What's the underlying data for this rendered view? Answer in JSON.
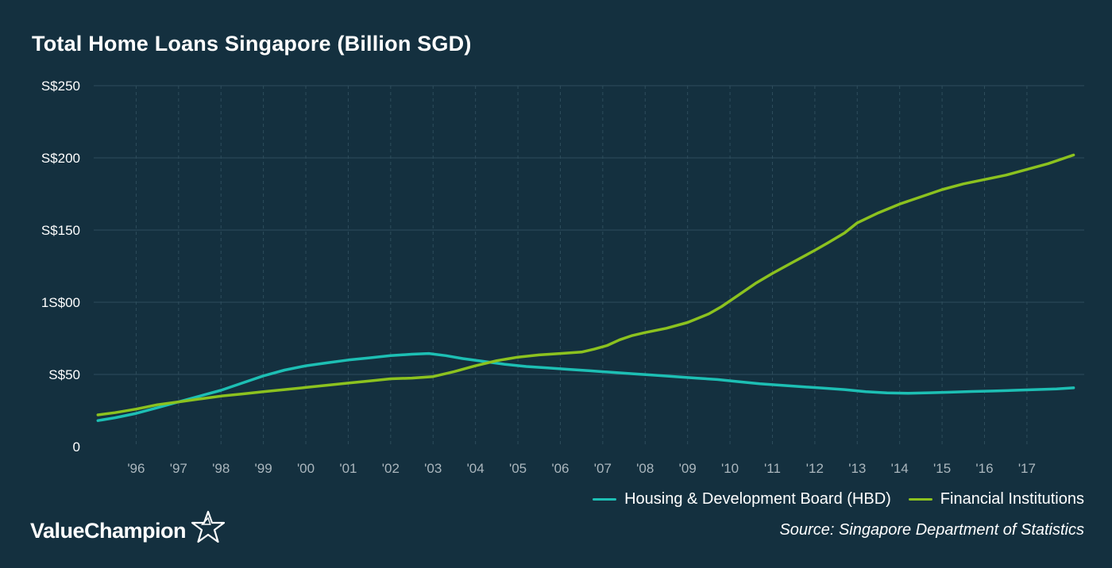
{
  "title": "Total Home Loans Singapore (Billion SGD)",
  "legend": [
    {
      "label": "Housing & Development Board (HBD)",
      "color": "#1dbfb4"
    },
    {
      "label": "Financial Institutions",
      "color": "#8cc21f"
    }
  ],
  "source": "Source: Singapore Department of Statistics",
  "brand": {
    "name": "ValueChampion",
    "icon": "star-outline-icon"
  },
  "colors": {
    "background": "#14303f",
    "grid": "#2e4d5c",
    "hdb": "#1dbfb4",
    "fi": "#8cc21f"
  },
  "chart_data": {
    "type": "line",
    "title": "Total Home Loans Singapore (Billion SGD)",
    "xlabel": "",
    "ylabel": "",
    "x_ticks": [
      "'96",
      "'97",
      "'98",
      "'99",
      "'00",
      "'01",
      "'02",
      "'03",
      "'04",
      "'05",
      "'06",
      "'07",
      "'08",
      "'09",
      "'10",
      "'11",
      "'12",
      "'13",
      "'14",
      "'15",
      "'16",
      "'17"
    ],
    "y_ticks": [
      {
        "value": 0,
        "label": "0"
      },
      {
        "value": 50,
        "label": "S$50"
      },
      {
        "value": 100,
        "label": "1S$00"
      },
      {
        "value": 150,
        "label": "S$150"
      },
      {
        "value": 200,
        "label": "S$200"
      },
      {
        "value": 250,
        "label": "S$250"
      }
    ],
    "xlim": [
      1995.0,
      2018.35
    ],
    "ylim": [
      0,
      250
    ],
    "grid": true,
    "legend_position": "bottom-right",
    "series": [
      {
        "name": "Housing & Development Board (HBD)",
        "color": "#1dbfb4",
        "points": [
          [
            1995.1,
            18
          ],
          [
            1995.5,
            20
          ],
          [
            1996.0,
            23
          ],
          [
            1996.5,
            27
          ],
          [
            1997.0,
            31
          ],
          [
            1997.5,
            35
          ],
          [
            1998.0,
            39
          ],
          [
            1998.5,
            44
          ],
          [
            1999.0,
            49
          ],
          [
            1999.5,
            53
          ],
          [
            2000.0,
            56
          ],
          [
            2000.5,
            58
          ],
          [
            2001.0,
            60
          ],
          [
            2001.5,
            61.5
          ],
          [
            2002.0,
            63
          ],
          [
            2002.5,
            64
          ],
          [
            2002.9,
            64.5
          ],
          [
            2003.3,
            63
          ],
          [
            2003.7,
            61
          ],
          [
            2004.2,
            59
          ],
          [
            2004.7,
            57
          ],
          [
            2005.2,
            55.5
          ],
          [
            2005.7,
            54.5
          ],
          [
            2006.2,
            53.5
          ],
          [
            2006.7,
            52.5
          ],
          [
            2007.2,
            51.5
          ],
          [
            2007.7,
            50.5
          ],
          [
            2008.2,
            49.5
          ],
          [
            2008.7,
            48.5
          ],
          [
            2009.2,
            47.5
          ],
          [
            2009.7,
            46.5
          ],
          [
            2010.2,
            45
          ],
          [
            2010.7,
            43.5
          ],
          [
            2011.2,
            42.5
          ],
          [
            2011.7,
            41.5
          ],
          [
            2012.2,
            40.5
          ],
          [
            2012.7,
            39.5
          ],
          [
            2013.2,
            38
          ],
          [
            2013.7,
            37.2
          ],
          [
            2014.2,
            37
          ],
          [
            2014.7,
            37.3
          ],
          [
            2015.2,
            37.7
          ],
          [
            2015.7,
            38.2
          ],
          [
            2016.2,
            38.5
          ],
          [
            2016.7,
            39
          ],
          [
            2017.2,
            39.5
          ],
          [
            2017.7,
            40
          ],
          [
            2018.1,
            40.7
          ]
        ]
      },
      {
        "name": "Financial Institutions",
        "color": "#8cc21f",
        "points": [
          [
            1995.1,
            22
          ],
          [
            1995.5,
            23.5
          ],
          [
            1996.0,
            26
          ],
          [
            1996.5,
            29
          ],
          [
            1997.0,
            31
          ],
          [
            1997.5,
            33
          ],
          [
            1998.0,
            35
          ],
          [
            1998.5,
            36.5
          ],
          [
            1999.0,
            38
          ],
          [
            1999.5,
            39.5
          ],
          [
            2000.0,
            41
          ],
          [
            2000.5,
            42.5
          ],
          [
            2001.0,
            44
          ],
          [
            2001.5,
            45.5
          ],
          [
            2002.0,
            47
          ],
          [
            2002.5,
            47.5
          ],
          [
            2003.0,
            48.5
          ],
          [
            2003.5,
            52
          ],
          [
            2004.0,
            56
          ],
          [
            2004.5,
            59.5
          ],
          [
            2005.0,
            62
          ],
          [
            2005.5,
            63.5
          ],
          [
            2006.0,
            64.5
          ],
          [
            2006.5,
            65.5
          ],
          [
            2006.8,
            67.5
          ],
          [
            2007.1,
            70
          ],
          [
            2007.4,
            74
          ],
          [
            2007.7,
            77
          ],
          [
            2008.0,
            79
          ],
          [
            2008.5,
            82
          ],
          [
            2009.0,
            86
          ],
          [
            2009.5,
            92
          ],
          [
            2009.8,
            97
          ],
          [
            2010.2,
            105
          ],
          [
            2010.6,
            113
          ],
          [
            2011.0,
            120
          ],
          [
            2011.5,
            128
          ],
          [
            2012.0,
            136
          ],
          [
            2012.3,
            141
          ],
          [
            2012.7,
            148
          ],
          [
            2013.0,
            155
          ],
          [
            2013.5,
            162
          ],
          [
            2014.0,
            168
          ],
          [
            2014.5,
            173
          ],
          [
            2015.0,
            178
          ],
          [
            2015.5,
            182
          ],
          [
            2016.0,
            185
          ],
          [
            2016.5,
            188
          ],
          [
            2017.0,
            192
          ],
          [
            2017.5,
            196
          ],
          [
            2018.1,
            202
          ]
        ]
      }
    ]
  }
}
